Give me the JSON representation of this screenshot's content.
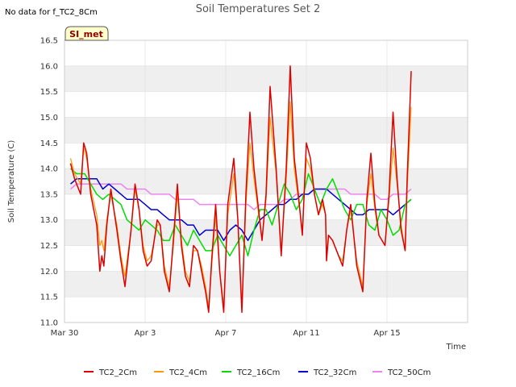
{
  "page": {
    "no_data_note": "No data for f_TC2_8Cm",
    "badge": "SI_met"
  },
  "colors": {
    "band": "#efefef",
    "grid": "#dddddd",
    "badge_fill": "#ffffcc",
    "badge_text": "#8b0000"
  },
  "chart_data": {
    "type": "line",
    "title": "Soil Temperatures Set 2",
    "xlabel": "Time",
    "ylabel": "Soil Temperature (C)",
    "xlim": [
      0,
      20
    ],
    "ylim": [
      11.0,
      16.5
    ],
    "x_ticks": [
      {
        "value": 0,
        "label": "Mar 30"
      },
      {
        "value": 4,
        "label": "Apr 3"
      },
      {
        "value": 8,
        "label": "Apr 7"
      },
      {
        "value": 12,
        "label": "Apr 11"
      },
      {
        "value": 16,
        "label": "Apr 15"
      }
    ],
    "y_ticks": [
      11.0,
      11.5,
      12.0,
      12.5,
      13.0,
      13.5,
      14.0,
      14.5,
      15.0,
      15.5,
      16.0,
      16.5
    ],
    "grid": true,
    "legend_position": "bottom",
    "series": [
      {
        "name": "TC2_2Cm",
        "color": "#dd0000",
        "width": 1.5,
        "x": [
          0.3,
          0.5,
          0.8,
          0.95,
          1.1,
          1.3,
          1.6,
          1.75,
          1.85,
          1.95,
          2.1,
          2.3,
          2.6,
          2.8,
          3.0,
          3.3,
          3.5,
          3.7,
          3.9,
          4.1,
          4.3,
          4.6,
          4.75,
          4.95,
          5.2,
          5.4,
          5.6,
          5.8,
          6.0,
          6.2,
          6.4,
          6.6,
          6.8,
          7.0,
          7.15,
          7.3,
          7.5,
          7.7,
          7.9,
          8.1,
          8.4,
          8.6,
          8.8,
          9.0,
          9.2,
          9.4,
          9.6,
          9.8,
          10.0,
          10.2,
          10.5,
          10.75,
          11.0,
          11.2,
          11.4,
          11.6,
          11.8,
          12.0,
          12.2,
          12.4,
          12.6,
          12.8,
          12.95,
          13.0,
          13.1,
          13.3,
          13.6,
          13.8,
          14.0,
          14.2,
          14.5,
          14.8,
          15.0,
          15.2,
          15.4,
          15.6,
          15.9,
          16.1,
          16.3,
          16.5,
          16.7,
          16.9,
          17.0,
          17.2
        ],
        "y": [
          14.1,
          13.8,
          13.5,
          14.5,
          14.3,
          13.5,
          12.9,
          12.0,
          12.3,
          12.1,
          12.9,
          13.6,
          12.8,
          12.2,
          11.7,
          12.8,
          13.7,
          13.2,
          12.4,
          12.1,
          12.2,
          13.0,
          12.9,
          12.0,
          11.6,
          12.6,
          13.7,
          12.5,
          11.9,
          11.7,
          12.5,
          12.4,
          12.0,
          11.6,
          11.2,
          12.2,
          13.3,
          12.0,
          11.2,
          13.3,
          14.2,
          13.0,
          11.2,
          13.5,
          15.1,
          14.0,
          13.3,
          12.6,
          13.5,
          15.6,
          14.0,
          12.3,
          14.0,
          16.0,
          14.2,
          13.5,
          12.7,
          14.5,
          14.2,
          13.5,
          13.1,
          13.4,
          13.1,
          12.2,
          12.7,
          12.6,
          12.3,
          12.1,
          12.8,
          13.3,
          12.1,
          11.6,
          13.4,
          14.3,
          13.3,
          12.7,
          12.5,
          13.5,
          15.1,
          13.8,
          12.8,
          12.4,
          13.8,
          15.9
        ]
      },
      {
        "name": "TC2_4Cm",
        "color": "#ff9900",
        "width": 1.2,
        "x": [
          0.3,
          0.5,
          0.8,
          0.95,
          1.1,
          1.3,
          1.6,
          1.75,
          1.85,
          1.95,
          2.1,
          2.3,
          2.6,
          2.8,
          3.0,
          3.3,
          3.5,
          3.7,
          3.9,
          4.1,
          4.3,
          4.6,
          4.75,
          4.95,
          5.2,
          5.4,
          5.6,
          5.8,
          6.0,
          6.2,
          6.4,
          6.6,
          6.8,
          7.0,
          7.15,
          7.3,
          7.5,
          7.7,
          7.9,
          8.1,
          8.4,
          8.6,
          8.8,
          9.0,
          9.2,
          9.4,
          9.6,
          9.8,
          10.0,
          10.2,
          10.5,
          10.75,
          11.0,
          11.2,
          11.4,
          11.6,
          11.8,
          12.0,
          12.2,
          12.4,
          12.6,
          12.8,
          12.95,
          13.0,
          13.1,
          13.3,
          13.6,
          13.8,
          14.0,
          14.2,
          14.5,
          14.8,
          15.0,
          15.2,
          15.4,
          15.6,
          15.9,
          16.1,
          16.3,
          16.5,
          16.7,
          16.9,
          17.0,
          17.2
        ],
        "y": [
          14.2,
          13.9,
          13.7,
          14.4,
          14.2,
          13.6,
          13.1,
          12.5,
          12.6,
          12.4,
          13.0,
          13.5,
          12.9,
          12.3,
          11.9,
          12.8,
          13.6,
          13.2,
          12.5,
          12.2,
          12.3,
          12.9,
          12.9,
          12.1,
          11.7,
          12.5,
          13.5,
          12.6,
          12.0,
          11.8,
          12.4,
          12.4,
          12.1,
          11.7,
          11.3,
          12.1,
          13.1,
          12.0,
          11.3,
          13.1,
          13.9,
          13.0,
          11.3,
          13.3,
          14.5,
          13.8,
          13.2,
          12.6,
          13.4,
          15.0,
          13.9,
          12.4,
          13.8,
          15.3,
          14.0,
          13.4,
          12.8,
          14.2,
          14.0,
          13.5,
          13.1,
          13.3,
          13.1,
          12.3,
          12.7,
          12.6,
          12.3,
          12.2,
          12.8,
          13.2,
          12.2,
          11.7,
          13.3,
          13.9,
          13.2,
          12.7,
          12.5,
          13.4,
          14.4,
          13.7,
          12.9,
          12.4,
          13.6,
          15.2
        ]
      },
      {
        "name": "TC2_16Cm",
        "color": "#00dd00",
        "width": 1.5,
        "x": [
          0.3,
          0.6,
          1.0,
          1.3,
          1.6,
          1.9,
          2.2,
          2.5,
          2.8,
          3.1,
          3.4,
          3.7,
          4.0,
          4.3,
          4.6,
          4.9,
          5.2,
          5.5,
          5.8,
          6.1,
          6.4,
          6.7,
          7.0,
          7.3,
          7.6,
          7.9,
          8.2,
          8.5,
          8.8,
          9.1,
          9.4,
          9.7,
          10.0,
          10.3,
          10.6,
          10.9,
          11.2,
          11.5,
          11.8,
          12.1,
          12.4,
          12.7,
          13.0,
          13.3,
          13.6,
          13.9,
          14.2,
          14.5,
          14.8,
          15.1,
          15.4,
          15.7,
          16.0,
          16.3,
          16.6,
          16.9,
          17.2
        ],
        "y": [
          14.0,
          13.9,
          13.9,
          13.7,
          13.5,
          13.4,
          13.5,
          13.4,
          13.3,
          13.0,
          12.9,
          12.8,
          13.0,
          12.9,
          12.8,
          12.6,
          12.6,
          12.9,
          12.7,
          12.5,
          12.8,
          12.6,
          12.4,
          12.4,
          12.7,
          12.5,
          12.3,
          12.5,
          12.7,
          12.3,
          12.8,
          13.2,
          13.2,
          12.9,
          13.3,
          13.7,
          13.5,
          13.2,
          13.4,
          13.9,
          13.6,
          13.3,
          13.6,
          13.8,
          13.5,
          13.2,
          13.0,
          13.3,
          13.3,
          12.9,
          12.8,
          13.2,
          13.0,
          12.7,
          12.8,
          13.3,
          13.4
        ]
      },
      {
        "name": "TC2_32Cm",
        "color": "#0000cc",
        "width": 1.5,
        "x": [
          0.3,
          0.6,
          1.0,
          1.3,
          1.6,
          1.9,
          2.2,
          2.5,
          2.8,
          3.1,
          3.4,
          3.7,
          4.0,
          4.3,
          4.6,
          4.9,
          5.2,
          5.5,
          5.8,
          6.1,
          6.4,
          6.7,
          7.0,
          7.3,
          7.6,
          7.9,
          8.2,
          8.5,
          8.8,
          9.1,
          9.4,
          9.7,
          10.0,
          10.3,
          10.6,
          10.9,
          11.2,
          11.5,
          11.8,
          12.1,
          12.4,
          12.7,
          13.0,
          13.3,
          13.6,
          13.9,
          14.2,
          14.5,
          14.8,
          15.1,
          15.4,
          15.7,
          16.0,
          16.3,
          16.6,
          16.9,
          17.2
        ],
        "y": [
          13.7,
          13.8,
          13.8,
          13.8,
          13.8,
          13.6,
          13.7,
          13.6,
          13.5,
          13.4,
          13.4,
          13.4,
          13.3,
          13.2,
          13.2,
          13.1,
          13.0,
          13.0,
          13.0,
          12.9,
          12.9,
          12.7,
          12.8,
          12.8,
          12.8,
          12.6,
          12.8,
          12.9,
          12.8,
          12.6,
          12.8,
          13.0,
          13.1,
          13.2,
          13.3,
          13.3,
          13.4,
          13.4,
          13.5,
          13.5,
          13.6,
          13.6,
          13.6,
          13.5,
          13.4,
          13.3,
          13.2,
          13.1,
          13.1,
          13.2,
          13.2,
          13.2,
          13.2,
          13.1,
          13.2,
          13.3,
          13.4
        ]
      },
      {
        "name": "TC2_50Cm",
        "color": "#ee82ee",
        "width": 1.5,
        "x": [
          0.3,
          0.6,
          1.0,
          1.3,
          1.6,
          1.9,
          2.2,
          2.5,
          2.8,
          3.1,
          3.4,
          3.7,
          4.0,
          4.3,
          4.6,
          4.9,
          5.2,
          5.5,
          5.8,
          6.1,
          6.4,
          6.7,
          7.0,
          7.3,
          7.6,
          7.9,
          8.2,
          8.5,
          8.8,
          9.1,
          9.4,
          9.7,
          10.0,
          10.3,
          10.6,
          10.9,
          11.2,
          11.5,
          11.8,
          12.1,
          12.4,
          12.7,
          13.0,
          13.3,
          13.6,
          13.9,
          14.2,
          14.5,
          14.8,
          15.1,
          15.4,
          15.7,
          16.0,
          16.3,
          16.6,
          16.9,
          17.2
        ],
        "y": [
          13.6,
          13.7,
          13.7,
          13.7,
          13.7,
          13.7,
          13.7,
          13.7,
          13.7,
          13.6,
          13.6,
          13.6,
          13.6,
          13.5,
          13.5,
          13.5,
          13.5,
          13.4,
          13.4,
          13.4,
          13.4,
          13.3,
          13.3,
          13.3,
          13.3,
          13.3,
          13.3,
          13.3,
          13.3,
          13.3,
          13.2,
          13.3,
          13.3,
          13.3,
          13.3,
          13.4,
          13.4,
          13.5,
          13.5,
          13.5,
          13.6,
          13.6,
          13.6,
          13.6,
          13.6,
          13.6,
          13.5,
          13.5,
          13.5,
          13.5,
          13.5,
          13.4,
          13.4,
          13.5,
          13.5,
          13.5,
          13.6
        ]
      }
    ]
  }
}
